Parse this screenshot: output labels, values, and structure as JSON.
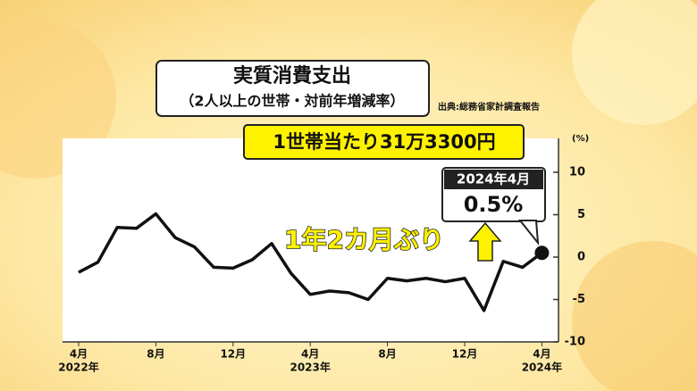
{
  "chart_data": {
    "type": "line",
    "title": "実質消費支出",
    "subtitle": "（2人以上の世帯・対前年増減率）",
    "source": "出典:総務省家計調査報告",
    "highlight": "1世帯当たり31万3300円",
    "callout_date": "2024年4月",
    "annotation": "1年2カ月ぶり",
    "y_unit": "(%)",
    "categories": [
      "4月",
      null,
      null,
      null,
      "8月",
      null,
      null,
      null,
      "12月",
      null,
      null,
      null,
      "4月",
      null,
      null,
      null,
      "8月",
      null,
      null,
      null,
      "12月",
      null,
      null,
      null,
      "4月"
    ],
    "year_labels": [
      "2022年",
      null,
      null,
      null,
      null,
      null,
      null,
      null,
      null,
      null,
      null,
      null,
      "2023年",
      null,
      null,
      null,
      null,
      null,
      null,
      null,
      null,
      null,
      null,
      null,
      "2024年"
    ],
    "values": [
      -1.8,
      -0.6,
      3.5,
      3.4,
      5.1,
      2.3,
      1.2,
      -1.2,
      -1.3,
      -0.3,
      1.6,
      -1.9,
      -4.4,
      -4.0,
      -4.2,
      -5.0,
      -2.5,
      -2.8,
      -2.5,
      -2.9,
      -2.5,
      -6.3,
      -0.5,
      -1.2,
      0.5
    ],
    "value_labels": [
      null,
      null,
      null,
      null,
      null,
      null,
      null,
      null,
      null,
      null,
      null,
      null,
      null,
      null,
      null,
      null,
      null,
      null,
      null,
      null,
      null,
      null,
      null,
      null,
      "0.5%"
    ],
    "color": "#111111",
    "ylim": [
      -10,
      14
    ],
    "yticks": [
      10,
      5,
      0,
      -5,
      -10
    ]
  }
}
